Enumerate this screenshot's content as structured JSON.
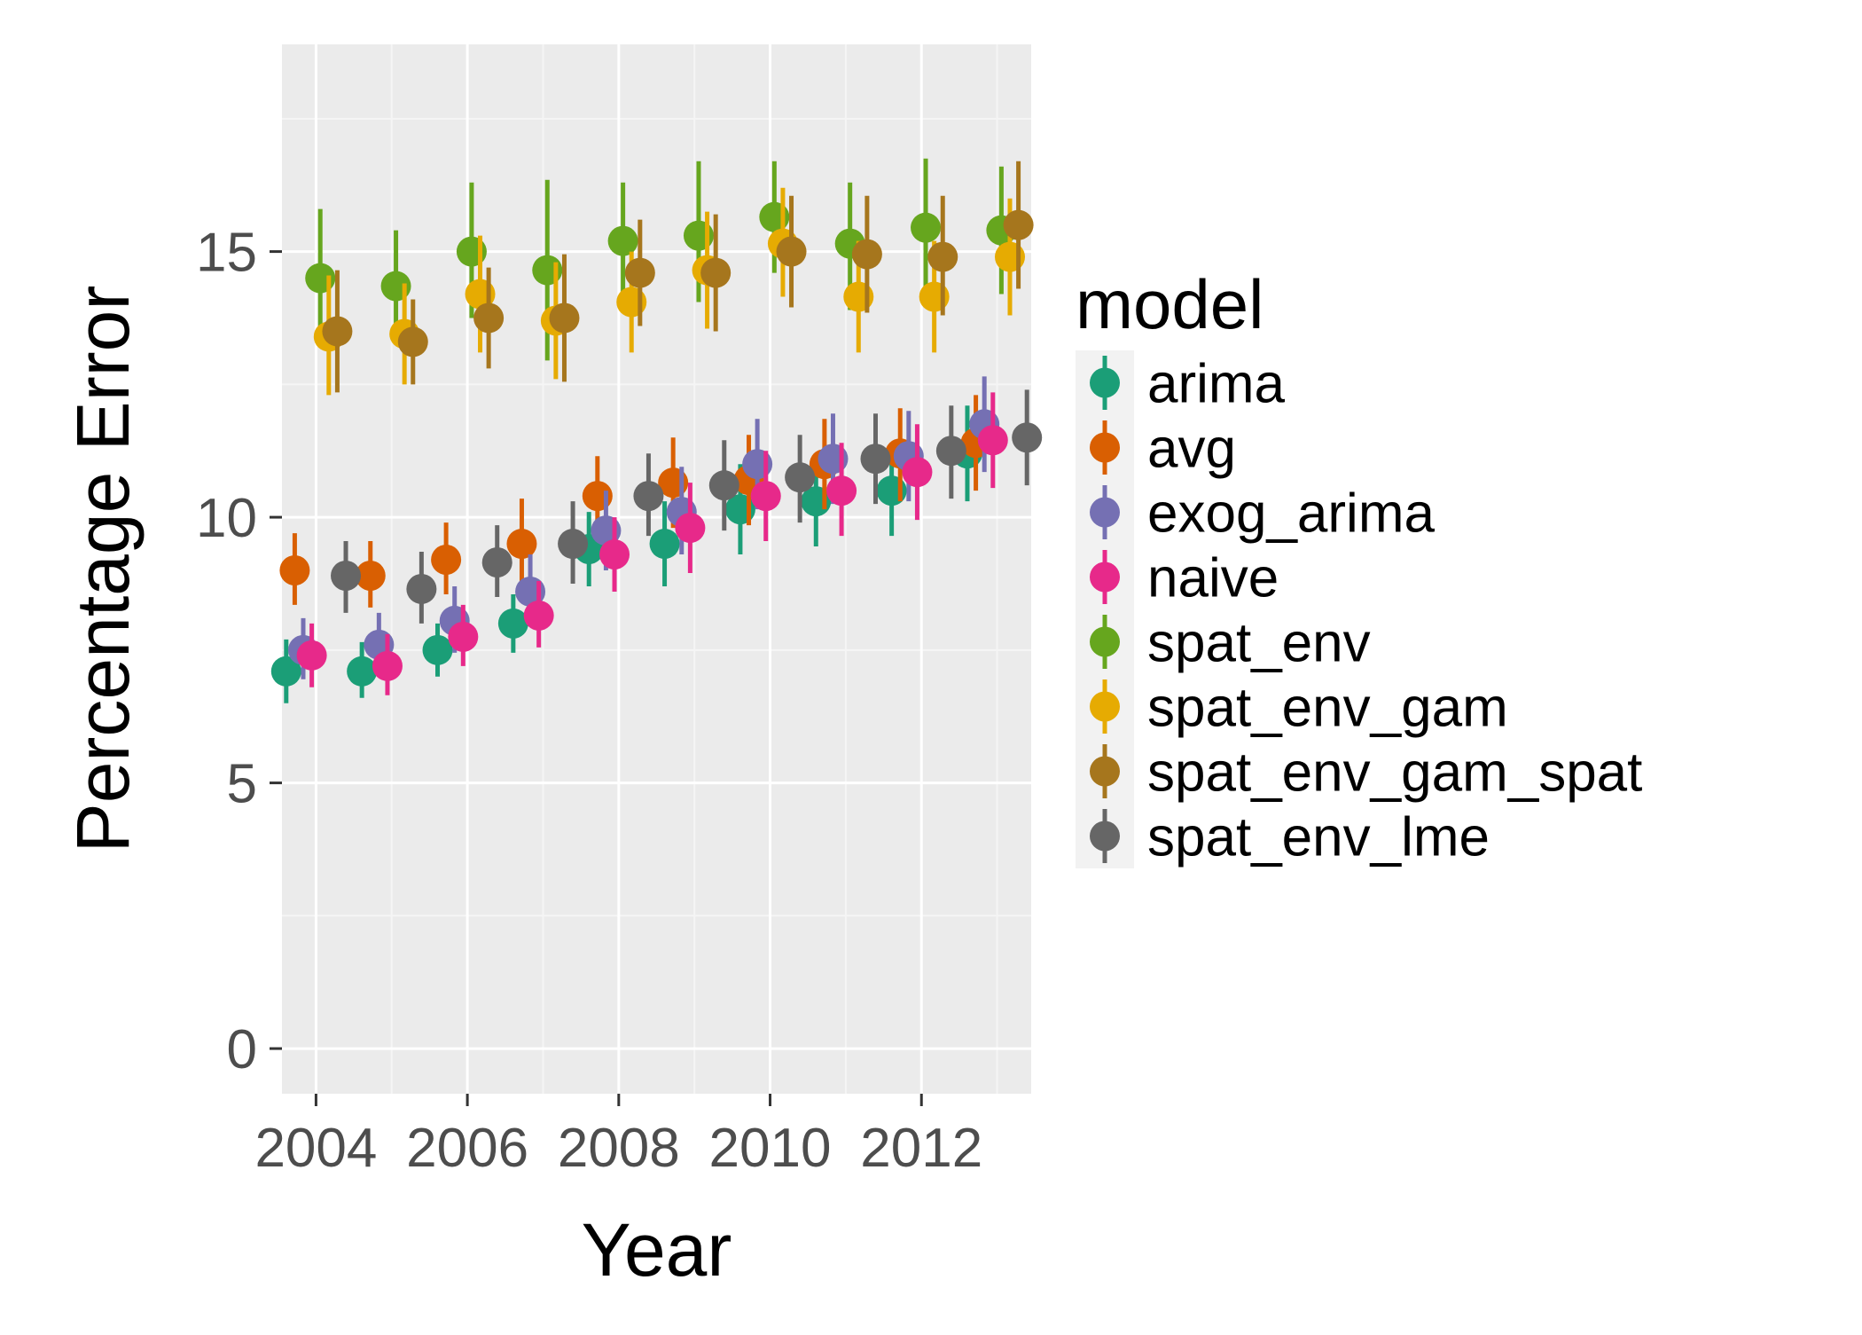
{
  "chart_data": {
    "type": "scatter",
    "variant": "point-range (mean with error bars), dodged by model",
    "title": "",
    "xlabel": "Year",
    "ylabel": "Percentage Error",
    "x": [
      2004,
      2005,
      2006,
      2007,
      2008,
      2009,
      2010,
      2011,
      2012,
      2013
    ],
    "x_ticks": [
      2004,
      2006,
      2008,
      2010,
      2012
    ],
    "y_ticks": [
      0,
      5,
      10,
      15
    ],
    "xlim": [
      2003.55,
      2013.45
    ],
    "ylim": [
      -0.85,
      18.9
    ],
    "grid": true,
    "legend": {
      "title": "model",
      "position": "right"
    },
    "series": [
      {
        "name": "arima",
        "color": "#1b9e77",
        "values": [
          7.1,
          7.1,
          7.5,
          8.0,
          9.4,
          9.5,
          10.15,
          10.3,
          10.5,
          11.2
        ],
        "low": [
          6.5,
          6.6,
          7.0,
          7.45,
          8.7,
          8.7,
          9.3,
          9.45,
          9.65,
          10.3
        ],
        "high": [
          7.7,
          7.65,
          8.0,
          8.55,
          10.1,
          10.3,
          11.0,
          11.15,
          11.35,
          12.1
        ]
      },
      {
        "name": "avg",
        "color": "#d95f02",
        "values": [
          9.0,
          8.9,
          9.2,
          9.5,
          10.4,
          10.65,
          10.7,
          11.0,
          11.2,
          11.4
        ],
        "low": [
          8.35,
          8.3,
          8.55,
          8.75,
          9.7,
          9.8,
          9.85,
          10.15,
          10.3,
          10.5
        ],
        "high": [
          9.7,
          9.55,
          9.9,
          10.35,
          11.15,
          11.5,
          11.55,
          11.85,
          12.05,
          12.3
        ]
      },
      {
        "name": "exog_arima",
        "color": "#7570b3",
        "values": [
          7.5,
          7.6,
          8.05,
          8.6,
          9.75,
          10.1,
          11.0,
          11.1,
          11.15,
          11.75
        ],
        "low": [
          6.95,
          7.05,
          7.45,
          7.95,
          9.0,
          9.3,
          10.15,
          10.25,
          10.3,
          10.85
        ],
        "high": [
          8.1,
          8.2,
          8.7,
          9.3,
          10.5,
          10.95,
          11.85,
          11.95,
          12.0,
          12.65
        ]
      },
      {
        "name": "naive",
        "color": "#e7298a",
        "values": [
          7.4,
          7.2,
          7.75,
          8.15,
          9.3,
          9.8,
          10.4,
          10.5,
          10.85,
          11.45
        ],
        "low": [
          6.8,
          6.65,
          7.2,
          7.55,
          8.6,
          8.95,
          9.55,
          9.65,
          9.95,
          10.55
        ],
        "high": [
          8.0,
          7.8,
          8.35,
          8.8,
          10.0,
          10.65,
          11.25,
          11.4,
          11.75,
          12.35
        ]
      },
      {
        "name": "spat_env",
        "color": "#66a61e",
        "values": [
          14.5,
          14.35,
          15.0,
          14.65,
          15.2,
          15.3,
          15.65,
          15.15,
          15.45,
          15.4
        ],
        "low": [
          13.2,
          13.3,
          13.75,
          12.95,
          14.15,
          14.05,
          14.6,
          13.9,
          14.25,
          14.2
        ],
        "high": [
          15.8,
          15.4,
          16.3,
          16.35,
          16.3,
          16.7,
          16.7,
          16.3,
          16.75,
          16.6
        ]
      },
      {
        "name": "spat_env_gam",
        "color": "#e6ab02",
        "values": [
          13.4,
          13.45,
          14.2,
          13.7,
          14.05,
          14.65,
          15.15,
          14.15,
          14.15,
          14.9
        ],
        "low": [
          12.3,
          12.5,
          13.1,
          12.6,
          13.1,
          13.55,
          14.15,
          13.1,
          13.1,
          13.8
        ],
        "high": [
          14.55,
          14.4,
          15.3,
          14.8,
          15.0,
          15.75,
          16.2,
          15.2,
          15.2,
          16.0
        ]
      },
      {
        "name": "spat_env_gam_spat",
        "color": "#a6761d",
        "values": [
          13.5,
          13.3,
          13.75,
          13.75,
          14.6,
          14.6,
          15.0,
          14.95,
          14.9,
          15.5
        ],
        "low": [
          12.35,
          12.5,
          12.8,
          12.55,
          13.6,
          13.5,
          13.95,
          13.85,
          13.8,
          14.3
        ],
        "high": [
          14.65,
          14.1,
          14.7,
          14.95,
          15.6,
          15.7,
          16.05,
          16.05,
          16.05,
          16.7
        ]
      },
      {
        "name": "spat_env_lme",
        "color": "#666666",
        "values": [
          8.9,
          8.65,
          9.15,
          9.5,
          10.4,
          10.6,
          10.75,
          11.1,
          11.25,
          11.5
        ],
        "low": [
          8.2,
          8.0,
          8.5,
          8.75,
          9.65,
          9.75,
          9.9,
          10.25,
          10.35,
          10.6
        ],
        "high": [
          9.55,
          9.35,
          9.85,
          10.3,
          11.2,
          11.45,
          11.55,
          11.95,
          12.1,
          12.4
        ]
      }
    ]
  }
}
